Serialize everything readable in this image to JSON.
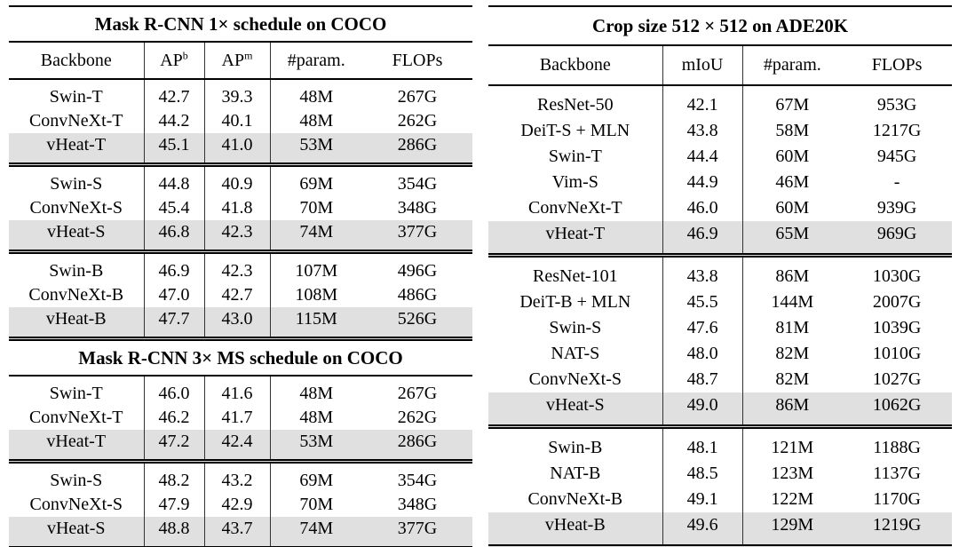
{
  "colors": {
    "highlight_row": "#e0e0e0",
    "rule": "#000000",
    "vertical_line": "#333333",
    "text": "#000000"
  },
  "tables": [
    {
      "name": "coco-detection-results",
      "sections": [
        {
          "title": "Mask R-CNN 1× schedule on COCO",
          "header": [
            {
              "label": "Backbone"
            },
            {
              "label": "AP",
              "sup": "b"
            },
            {
              "label": "AP",
              "sup": "m"
            },
            {
              "label": "#param."
            },
            {
              "label": "FLOPs"
            }
          ],
          "groups": [
            {
              "rows": [
                {
                  "cells": [
                    "Swin-T",
                    "42.7",
                    "39.3",
                    "48M",
                    "267G"
                  ],
                  "highlight": false
                },
                {
                  "cells": [
                    "ConvNeXt-T",
                    "44.2",
                    "40.1",
                    "48M",
                    "262G"
                  ],
                  "highlight": false
                },
                {
                  "cells": [
                    "vHeat-T",
                    "45.1",
                    "41.0",
                    "53M",
                    "286G"
                  ],
                  "highlight": true
                }
              ]
            },
            {
              "rows": [
                {
                  "cells": [
                    "Swin-S",
                    "44.8",
                    "40.9",
                    "69M",
                    "354G"
                  ],
                  "highlight": false
                },
                {
                  "cells": [
                    "ConvNeXt-S",
                    "45.4",
                    "41.8",
                    "70M",
                    "348G"
                  ],
                  "highlight": false
                },
                {
                  "cells": [
                    "vHeat-S",
                    "46.8",
                    "42.3",
                    "74M",
                    "377G"
                  ],
                  "highlight": true
                }
              ]
            },
            {
              "rows": [
                {
                  "cells": [
                    "Swin-B",
                    "46.9",
                    "42.3",
                    "107M",
                    "496G"
                  ],
                  "highlight": false
                },
                {
                  "cells": [
                    "ConvNeXt-B",
                    "47.0",
                    "42.7",
                    "108M",
                    "486G"
                  ],
                  "highlight": false
                },
                {
                  "cells": [
                    "vHeat-B",
                    "47.7",
                    "43.0",
                    "115M",
                    "526G"
                  ],
                  "highlight": true
                }
              ]
            }
          ]
        },
        {
          "title": "Mask R-CNN 3× MS schedule on COCO",
          "header": null,
          "groups": [
            {
              "rows": [
                {
                  "cells": [
                    "Swin-T",
                    "46.0",
                    "41.6",
                    "48M",
                    "267G"
                  ],
                  "highlight": false
                },
                {
                  "cells": [
                    "ConvNeXt-T",
                    "46.2",
                    "41.7",
                    "48M",
                    "262G"
                  ],
                  "highlight": false
                },
                {
                  "cells": [
                    "vHeat-T",
                    "47.2",
                    "42.4",
                    "53M",
                    "286G"
                  ],
                  "highlight": true
                }
              ]
            },
            {
              "rows": [
                {
                  "cells": [
                    "Swin-S",
                    "48.2",
                    "43.2",
                    "69M",
                    "354G"
                  ],
                  "highlight": false
                },
                {
                  "cells": [
                    "ConvNeXt-S",
                    "47.9",
                    "42.9",
                    "70M",
                    "348G"
                  ],
                  "highlight": false
                },
                {
                  "cells": [
                    "vHeat-S",
                    "48.8",
                    "43.7",
                    "74M",
                    "377G"
                  ],
                  "highlight": true
                }
              ]
            }
          ]
        }
      ]
    },
    {
      "name": "ade20k-segmentation-results",
      "sections": [
        {
          "title": "Crop size 512 × 512 on ADE20K",
          "header": [
            {
              "label": "Backbone"
            },
            {
              "label": "mIoU"
            },
            {
              "label": "#param."
            },
            {
              "label": "FLOPs"
            }
          ],
          "groups": [
            {
              "rows": [
                {
                  "cells": [
                    "ResNet-50",
                    "42.1",
                    "67M",
                    "953G"
                  ],
                  "highlight": false
                },
                {
                  "cells": [
                    "DeiT-S + MLN",
                    "43.8",
                    "58M",
                    "1217G"
                  ],
                  "highlight": false
                },
                {
                  "cells": [
                    "Swin-T",
                    "44.4",
                    "60M",
                    "945G"
                  ],
                  "highlight": false
                },
                {
                  "cells": [
                    "Vim-S",
                    "44.9",
                    "46M",
                    "-"
                  ],
                  "highlight": false
                },
                {
                  "cells": [
                    "ConvNeXt-T",
                    "46.0",
                    "60M",
                    "939G"
                  ],
                  "highlight": false
                },
                {
                  "cells": [
                    "vHeat-T",
                    "46.9",
                    "65M",
                    "969G"
                  ],
                  "highlight": true
                }
              ]
            },
            {
              "rows": [
                {
                  "cells": [
                    "ResNet-101",
                    "43.8",
                    "86M",
                    "1030G"
                  ],
                  "highlight": false
                },
                {
                  "cells": [
                    "DeiT-B + MLN",
                    "45.5",
                    "144M",
                    "2007G"
                  ],
                  "highlight": false
                },
                {
                  "cells": [
                    "Swin-S",
                    "47.6",
                    "81M",
                    "1039G"
                  ],
                  "highlight": false
                },
                {
                  "cells": [
                    "NAT-S",
                    "48.0",
                    "82M",
                    "1010G"
                  ],
                  "highlight": false
                },
                {
                  "cells": [
                    "ConvNeXt-S",
                    "48.7",
                    "82M",
                    "1027G"
                  ],
                  "highlight": false
                },
                {
                  "cells": [
                    "vHeat-S",
                    "49.0",
                    "86M",
                    "1062G"
                  ],
                  "highlight": true
                }
              ]
            },
            {
              "rows": [
                {
                  "cells": [
                    "Swin-B",
                    "48.1",
                    "121M",
                    "1188G"
                  ],
                  "highlight": false
                },
                {
                  "cells": [
                    "NAT-B",
                    "48.5",
                    "123M",
                    "1137G"
                  ],
                  "highlight": false
                },
                {
                  "cells": [
                    "ConvNeXt-B",
                    "49.1",
                    "122M",
                    "1170G"
                  ],
                  "highlight": false
                },
                {
                  "cells": [
                    "vHeat-B",
                    "49.6",
                    "129M",
                    "1219G"
                  ],
                  "highlight": true
                }
              ]
            }
          ]
        }
      ]
    }
  ]
}
